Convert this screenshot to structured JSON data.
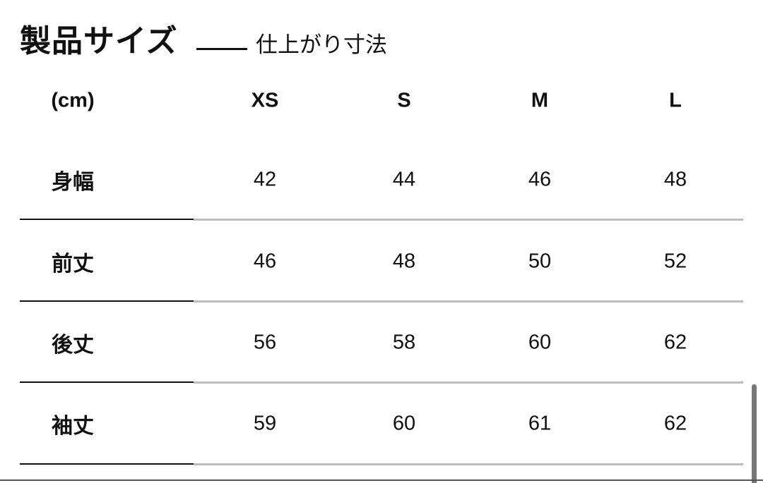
{
  "title": "製品サイズ",
  "subtitle": "仕上がり寸法",
  "table": {
    "unit_header": "(cm)",
    "columns": [
      "XS",
      "S",
      "M",
      "L"
    ],
    "rows": [
      {
        "label": "身幅",
        "values": [
          "42",
          "44",
          "46",
          "48"
        ]
      },
      {
        "label": "前丈",
        "values": [
          "46",
          "48",
          "50",
          "52"
        ]
      },
      {
        "label": "後丈",
        "values": [
          "56",
          "58",
          "60",
          "62"
        ]
      },
      {
        "label": "袖丈",
        "values": [
          "59",
          "60",
          "61",
          "62"
        ]
      }
    ]
  }
}
